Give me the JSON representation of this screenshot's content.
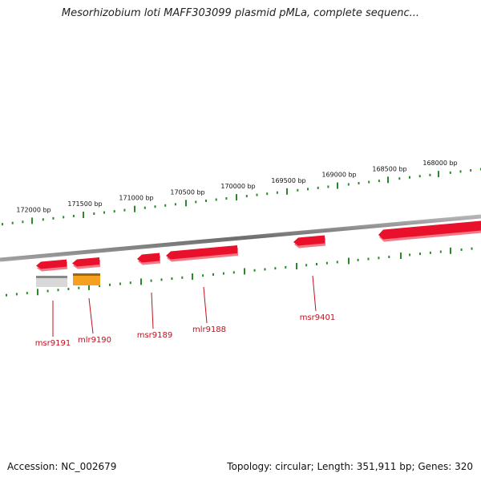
{
  "title": "Mesorhizobium loti MAFF303099 plasmid pMLa, complete sequenc...",
  "footer": {
    "accession": "Accession: NC_002679",
    "summary": "Topology: circular; Length: 351,911 bp; Genes: 320"
  },
  "scale_labels": [
    "172000 bp",
    "171500 bp",
    "171000 bp",
    "170500 bp",
    "170000 bp",
    "169500 bp",
    "169000 bp",
    "168500 bp",
    "168000 bp"
  ],
  "genes": [
    {
      "name": "msr9191",
      "color": "#d8d8d8",
      "strand": "minus"
    },
    {
      "name": "mlr9190",
      "color": "#f5a020",
      "strand": "minus"
    },
    {
      "name": "msr9189",
      "color": "#e8102a",
      "strand": "plus"
    },
    {
      "name": "mlr9188",
      "color": "#e8102a",
      "strand": "plus"
    },
    {
      "name": "msr9401",
      "color": "#e8102a",
      "strand": "plus"
    }
  ],
  "colors": {
    "gene": "#e8102a",
    "gene_label": "#c0101e",
    "backbone": "#8a8a8a",
    "ticks": "#2a8a2a"
  }
}
